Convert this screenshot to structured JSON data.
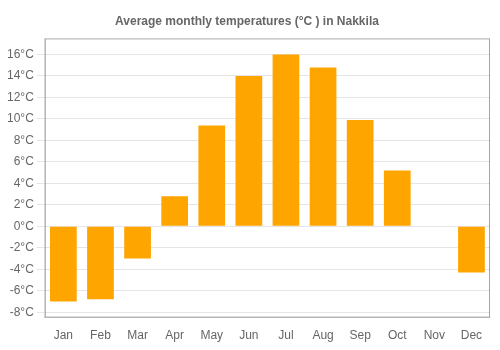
{
  "chart_data": {
    "type": "bar",
    "title": "Average monthly temperatures (°C ) in Nakkila",
    "categories": [
      "Jan",
      "Feb",
      "Mar",
      "Apr",
      "May",
      "Jun",
      "Jul",
      "Aug",
      "Sep",
      "Oct",
      "Nov",
      "Dec"
    ],
    "values": [
      -7.0,
      -6.8,
      -3.0,
      2.8,
      9.4,
      14.0,
      16.0,
      14.8,
      9.9,
      5.2,
      0.0,
      -4.3
    ],
    "color": "#FFA500",
    "ylim": [
      -8.5,
      17.5
    ],
    "yticks": [
      {
        "value": -8,
        "label": "-8°C"
      },
      {
        "value": -6,
        "label": "-6°C"
      },
      {
        "value": -4,
        "label": "-4°C"
      },
      {
        "value": -2,
        "label": "-2°C"
      },
      {
        "value": 0,
        "label": "0°C"
      },
      {
        "value": 2,
        "label": "2°C"
      },
      {
        "value": 4,
        "label": "4°C"
      },
      {
        "value": 6,
        "label": "6°C"
      },
      {
        "value": 8,
        "label": "8°C"
      },
      {
        "value": 10,
        "label": "10°C"
      },
      {
        "value": 12,
        "label": "12°C"
      },
      {
        "value": 14,
        "label": "14°C"
      },
      {
        "value": 16,
        "label": "16°C"
      }
    ],
    "grid": true
  }
}
